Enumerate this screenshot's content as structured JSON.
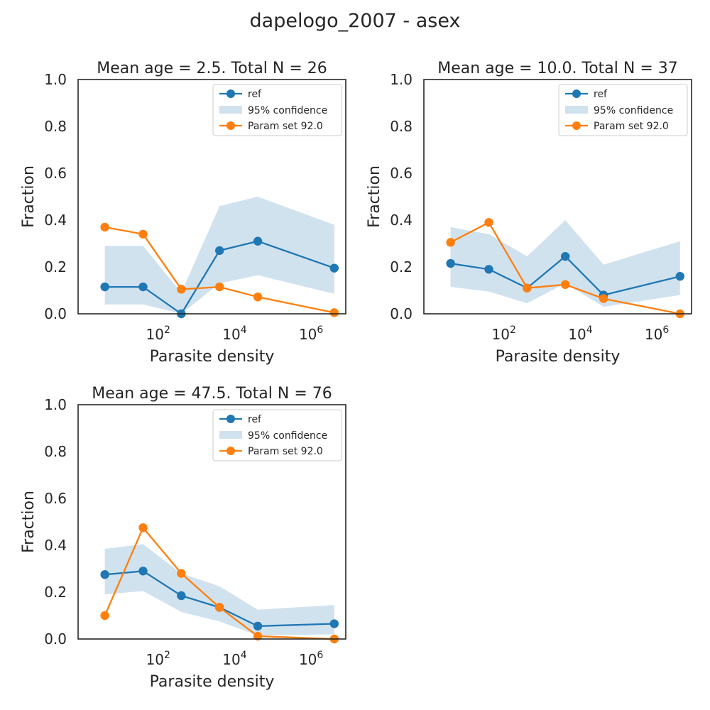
{
  "figure": {
    "suptitle": "dapelogo_2007 - asex",
    "colors": {
      "ref": "#1f77b4",
      "param": "#ff7f0e",
      "band": "#c6dbeb"
    }
  },
  "chart_data": [
    {
      "type": "line",
      "title": "Mean age = 2.5.  Total N = 26",
      "xlabel": "Parasite density",
      "ylabel": "Fraction",
      "xscale": "log",
      "xlim": [
        1,
        10000000
      ],
      "ylim": [
        0,
        1
      ],
      "yticks": [
        "0.0",
        "0.2",
        "0.4",
        "0.6",
        "0.8",
        "1.0"
      ],
      "xticks": [
        {
          "base": "10",
          "exp": "2",
          "value": 100
        },
        {
          "base": "10",
          "exp": "4",
          "value": 10000
        },
        {
          "base": "10",
          "exp": "6",
          "value": 1000000
        }
      ],
      "legend": {
        "position": "upper-right",
        "ref": "ref",
        "band": "95% confidence",
        "param": "Param set 92.0"
      },
      "x": [
        5,
        50,
        500,
        5000,
        50000,
        5000000
      ],
      "series": [
        {
          "name": "ref",
          "values": [
            0.115,
            0.115,
            0.0,
            0.27,
            0.31,
            0.195
          ]
        },
        {
          "name": "Param set 92.0",
          "values": [
            0.37,
            0.34,
            0.105,
            0.115,
            0.072,
            0.005
          ]
        }
      ],
      "confidence": {
        "lower": [
          0.04,
          0.04,
          0.0,
          0.13,
          0.165,
          0.085
        ],
        "upper": [
          0.29,
          0.29,
          0.09,
          0.46,
          0.5,
          0.38
        ]
      }
    },
    {
      "type": "line",
      "title": "Mean age = 10.0.  Total N = 37",
      "xlabel": "Parasite density",
      "ylabel": "Fraction",
      "xscale": "log",
      "xlim": [
        1,
        10000000
      ],
      "ylim": [
        0,
        1
      ],
      "yticks": [
        "0.0",
        "0.2",
        "0.4",
        "0.6",
        "0.8",
        "1.0"
      ],
      "xticks": [
        {
          "base": "10",
          "exp": "2",
          "value": 100
        },
        {
          "base": "10",
          "exp": "4",
          "value": 10000
        },
        {
          "base": "10",
          "exp": "6",
          "value": 1000000
        }
      ],
      "legend": {
        "position": "upper-right",
        "ref": "ref",
        "band": "95% confidence",
        "param": "Param set 92.0"
      },
      "x": [
        5,
        50,
        500,
        5000,
        50000,
        5000000
      ],
      "series": [
        {
          "name": "ref",
          "values": [
            0.215,
            0.19,
            0.11,
            0.245,
            0.08,
            0.16
          ]
        },
        {
          "name": "Param set 92.0",
          "values": [
            0.305,
            0.39,
            0.11,
            0.125,
            0.065,
            0.0
          ]
        }
      ],
      "confidence": {
        "lower": [
          0.115,
          0.095,
          0.045,
          0.13,
          0.03,
          0.08
        ],
        "upper": [
          0.37,
          0.34,
          0.245,
          0.4,
          0.21,
          0.31
        ]
      }
    },
    {
      "type": "line",
      "title": "Mean age = 47.5.  Total N = 76",
      "xlabel": "Parasite density",
      "ylabel": "Fraction",
      "xscale": "log",
      "xlim": [
        1,
        10000000
      ],
      "ylim": [
        0,
        1
      ],
      "yticks": [
        "0.0",
        "0.2",
        "0.4",
        "0.6",
        "0.8",
        "1.0"
      ],
      "xticks": [
        {
          "base": "10",
          "exp": "2",
          "value": 100
        },
        {
          "base": "10",
          "exp": "4",
          "value": 10000
        },
        {
          "base": "10",
          "exp": "6",
          "value": 1000000
        }
      ],
      "legend": {
        "position": "upper-right",
        "ref": "ref",
        "band": "95% confidence",
        "param": "Param set 92.0"
      },
      "x": [
        5,
        50,
        500,
        5000,
        50000,
        5000000
      ],
      "series": [
        {
          "name": "ref",
          "values": [
            0.275,
            0.29,
            0.185,
            0.135,
            0.055,
            0.065
          ]
        },
        {
          "name": "Param set 92.0",
          "values": [
            0.1,
            0.475,
            0.28,
            0.135,
            0.012,
            0.0
          ]
        }
      ],
      "confidence": {
        "lower": [
          0.19,
          0.205,
          0.115,
          0.075,
          0.015,
          0.02
        ],
        "upper": [
          0.385,
          0.405,
          0.28,
          0.225,
          0.125,
          0.145
        ]
      }
    }
  ]
}
